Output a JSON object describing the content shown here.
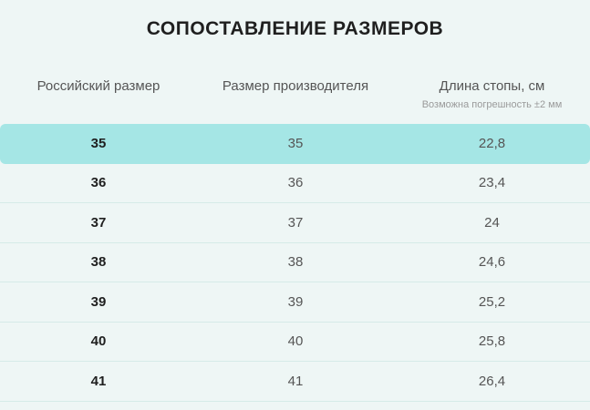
{
  "title": "СОПОСТАВЛЕНИЕ РАЗМЕРОВ",
  "columns": {
    "russian_size": "Российский размер",
    "manufacturer_size": "Размер производителя",
    "foot_length": "Длина стопы, см",
    "foot_length_note": "Возможна погрешность ±2 мм"
  },
  "rows": [
    {
      "ru": "35",
      "mfr": "35",
      "length": "22,8"
    },
    {
      "ru": "36",
      "mfr": "36",
      "length": "23,4"
    },
    {
      "ru": "37",
      "mfr": "37",
      "length": "24"
    },
    {
      "ru": "38",
      "mfr": "38",
      "length": "24,6"
    },
    {
      "ru": "39",
      "mfr": "39",
      "length": "25,2"
    },
    {
      "ru": "40",
      "mfr": "40",
      "length": "25,8"
    },
    {
      "ru": "41",
      "mfr": "41",
      "length": "26,4"
    }
  ],
  "highlighted_row": 0,
  "colors": {
    "background": "#eef6f5",
    "highlight": "#a5e6e5",
    "divider": "#d6ebe8"
  }
}
